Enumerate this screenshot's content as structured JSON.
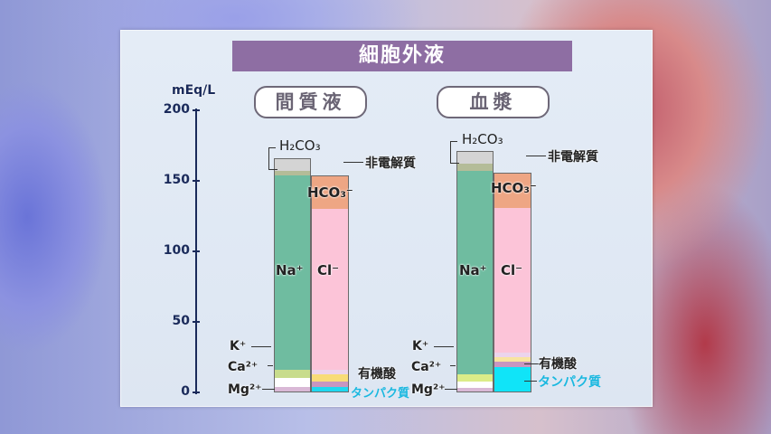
{
  "title": "細胞外液",
  "chart_data": {
    "type": "bar",
    "stacked": true,
    "ylabel": "mEq/L",
    "ylim": [
      0,
      200
    ],
    "yticks": [
      "200",
      "150",
      "100",
      "50",
      "0"
    ],
    "groups": [
      {
        "title": "間質液",
        "cations": [
          {
            "label": "Mg2+",
            "value": 4,
            "color": "#d9b8d6"
          },
          {
            "label": "Ca2+",
            "value": 6,
            "color": "#ffffff"
          },
          {
            "label": "K+",
            "value": 6,
            "color": "#c8dc8c"
          },
          {
            "label": "Na+",
            "value": 138,
            "color": "#6fbca0"
          },
          {
            "label": "H2CO3",
            "value": 3,
            "color": "#b4bc98"
          },
          {
            "label": "非電解質",
            "value": 9,
            "color": "#d4d4d4"
          }
        ],
        "anions": [
          {
            "label": "タンパク質",
            "value": 4,
            "color": "#1ed8f0"
          },
          {
            "label": "有機酸",
            "value": 4,
            "color": "#c896c0"
          },
          {
            "label": "",
            "value": 5,
            "color": "#f8dc78"
          },
          {
            "label": "",
            "value": 3,
            "color": "#ecd4ec"
          },
          {
            "label": "Cl-",
            "value": 114,
            "color": "#fcc4d8"
          },
          {
            "label": "HCO3-",
            "value": 24,
            "color": "#eea684"
          }
        ]
      },
      {
        "title": "血漿",
        "cations": [
          {
            "label": "Mg2+",
            "value": 3,
            "color": "#d9b8d6"
          },
          {
            "label": "Ca2+",
            "value": 5,
            "color": "#ffffff"
          },
          {
            "label": "K+",
            "value": 5,
            "color": "#dcec88"
          },
          {
            "label": "Na+",
            "value": 144,
            "color": "#6fbca0"
          },
          {
            "label": "H2CO3",
            "value": 5,
            "color": "#b4bc98"
          },
          {
            "label": "非電解質",
            "value": 9,
            "color": "#d4d4d4"
          }
        ],
        "anions": [
          {
            "label": "タンパク質",
            "value": 18,
            "color": "#10e4f8"
          },
          {
            "label": "有機酸",
            "value": 4,
            "color": "#c896c0"
          },
          {
            "label": "",
            "value": 3,
            "color": "#f8e4a0"
          },
          {
            "label": "",
            "value": 3,
            "color": "#ecd4ec"
          },
          {
            "label": "Cl-",
            "value": 103,
            "color": "#fcc4d8"
          },
          {
            "label": "HCO3-",
            "value": 25,
            "color": "#eea684"
          }
        ]
      }
    ]
  },
  "labels": {
    "h2co3": "H₂CO₃",
    "nonelectrolyte": "非電解質",
    "hco3": "HCO₃⁻",
    "na": "Na⁺",
    "cl": "Cl⁻",
    "k": "K⁺",
    "ca": "Ca²⁺",
    "mg": "Mg²⁺",
    "organic_acid": "有機酸",
    "protein": "タンパク質"
  },
  "colors": {
    "title_bar": "#8e6ea3",
    "axis": "#1a2a5a",
    "protein_label": "#1ab8e0"
  }
}
